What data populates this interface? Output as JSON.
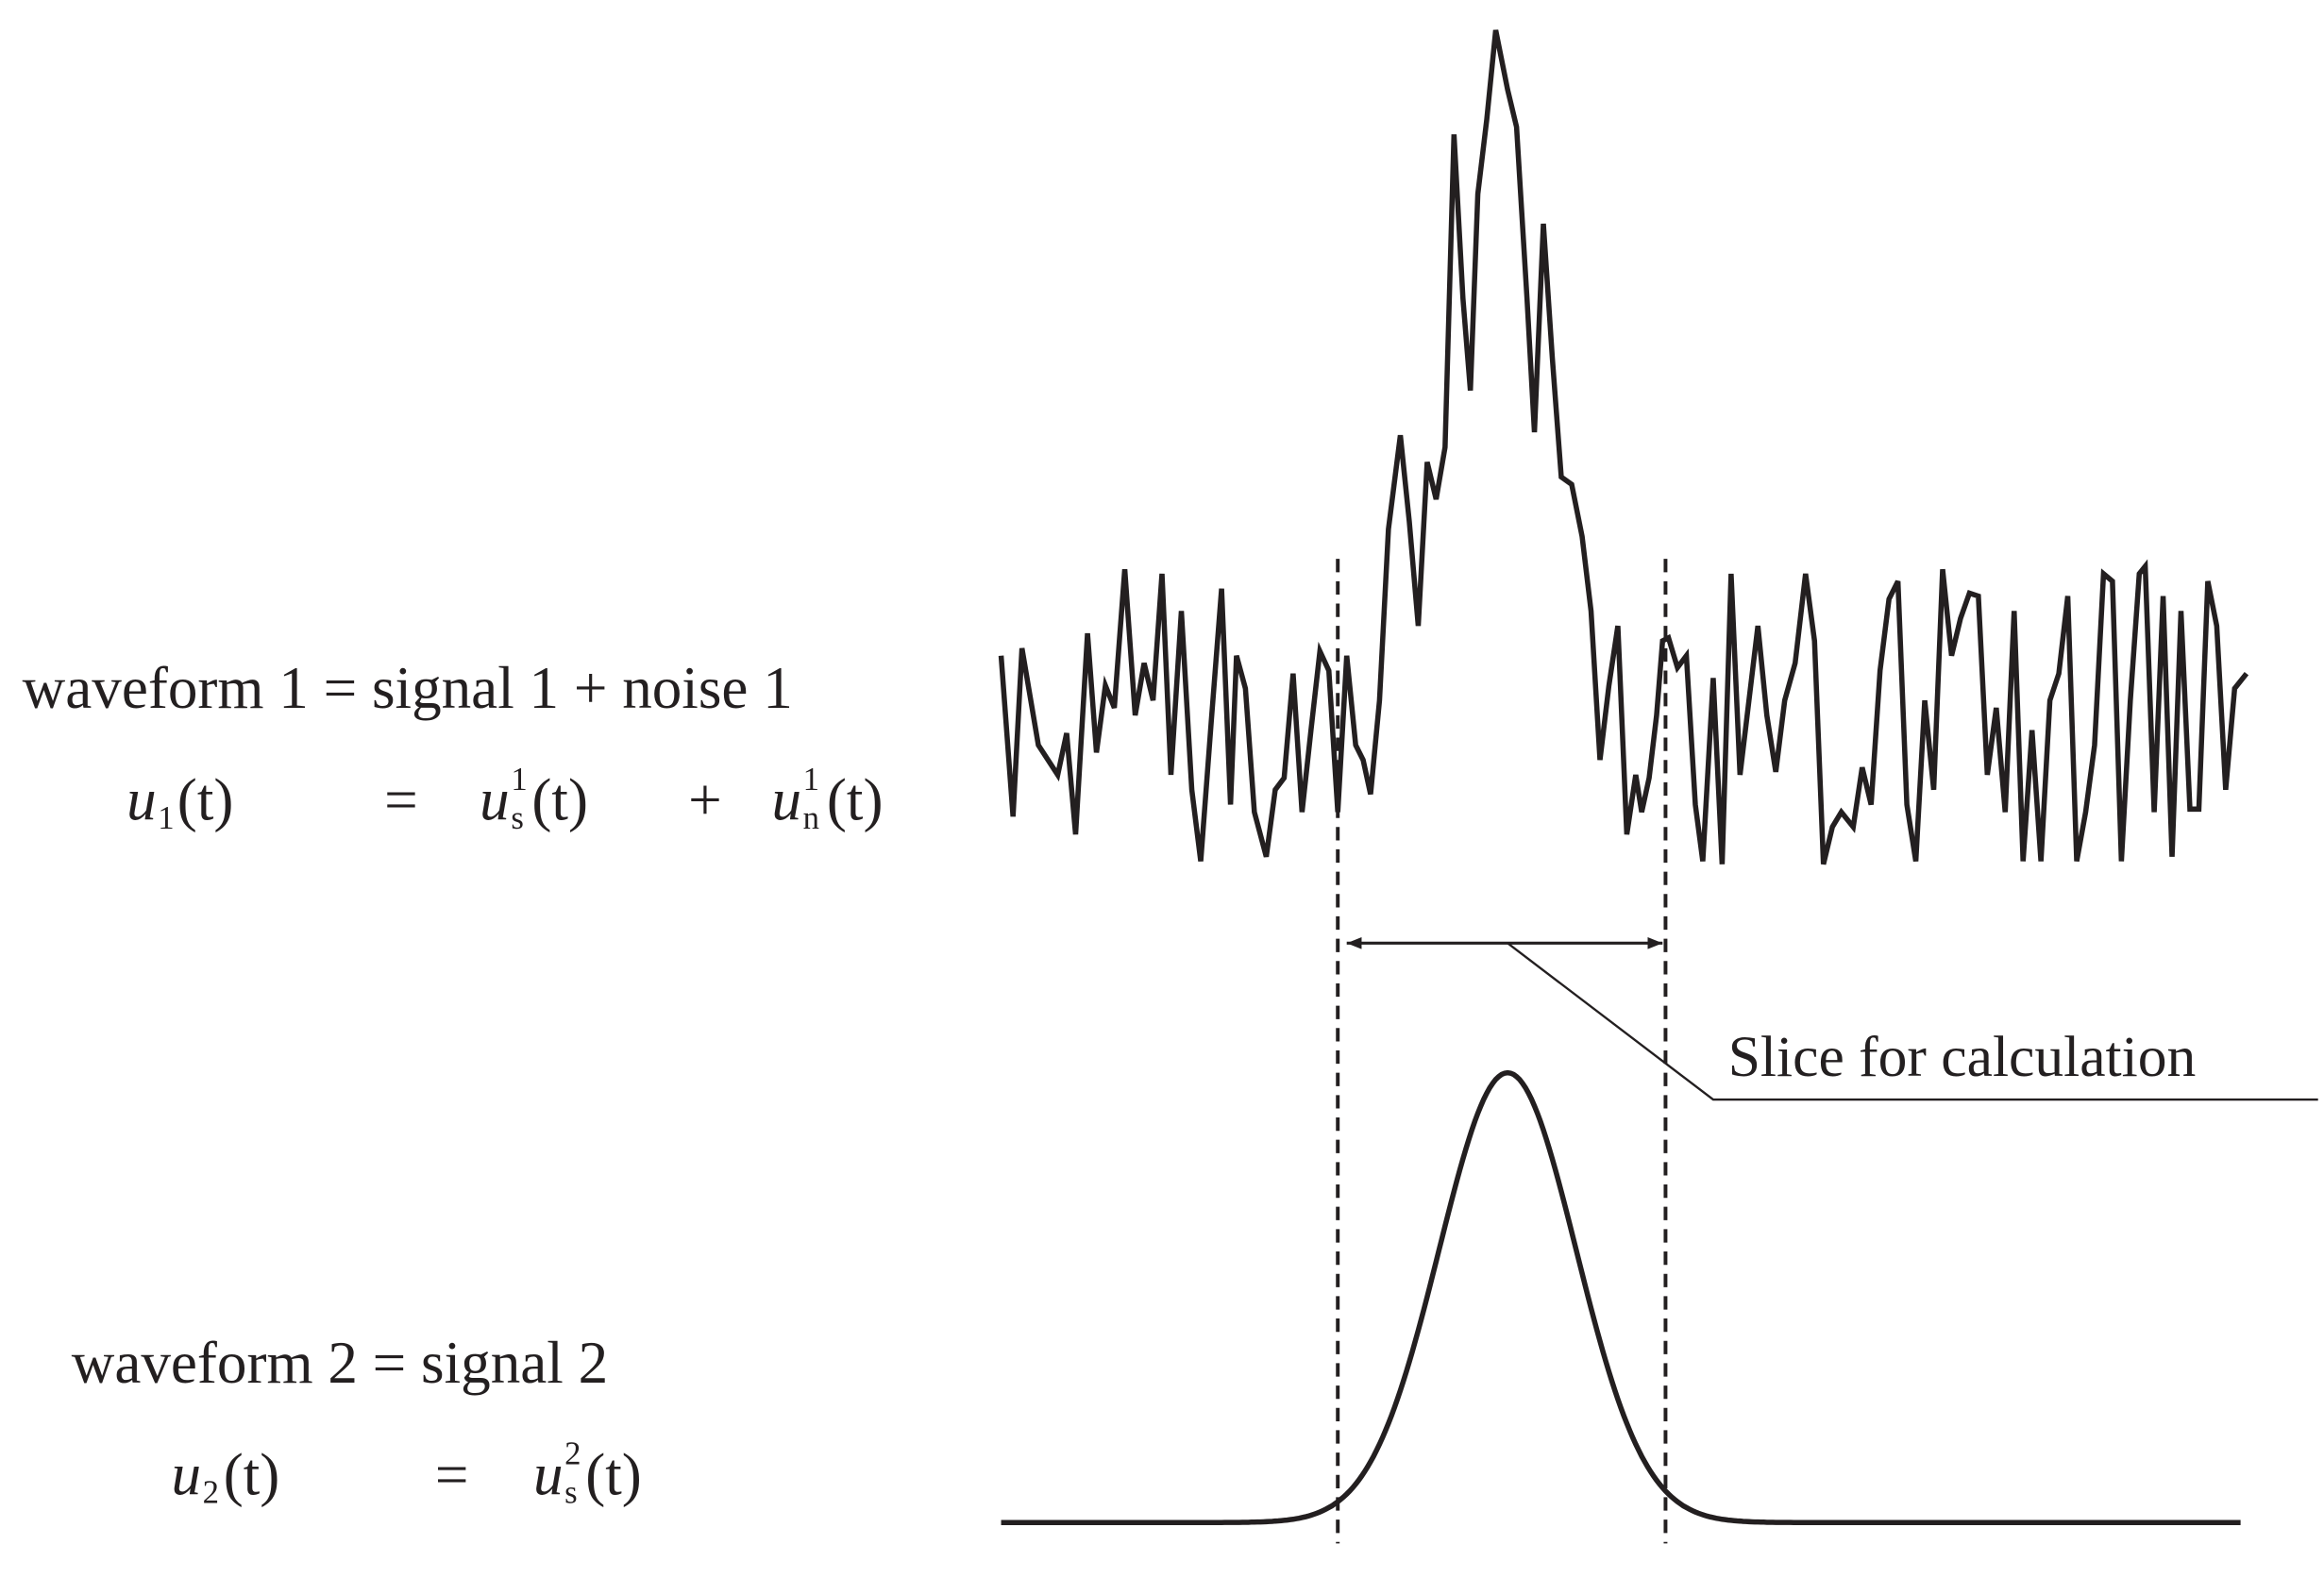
{
  "waveform_1": {
    "label": "waveform 1 = signal 1 + noise 1",
    "equation": {
      "lhs": {
        "base": "u",
        "sub": "1",
        "arg": "(t)"
      },
      "equals": "=",
      "term_1": {
        "base": "u",
        "sub": "s",
        "sup": "1",
        "arg": "(t)"
      },
      "plus": "+",
      "term_2": {
        "base": "u",
        "sub": "n",
        "sup": "1",
        "arg": "(t)"
      }
    }
  },
  "waveform_2": {
    "label": "waveform 2 = signal 2",
    "equation": {
      "lhs": {
        "base": "u",
        "sub": "2",
        "arg": "(t)"
      },
      "equals": "=",
      "term_1": {
        "base": "u",
        "sub": "s",
        "sup": "2",
        "arg": "(t)"
      }
    }
  },
  "annotation": "Slice for calculation"
}
